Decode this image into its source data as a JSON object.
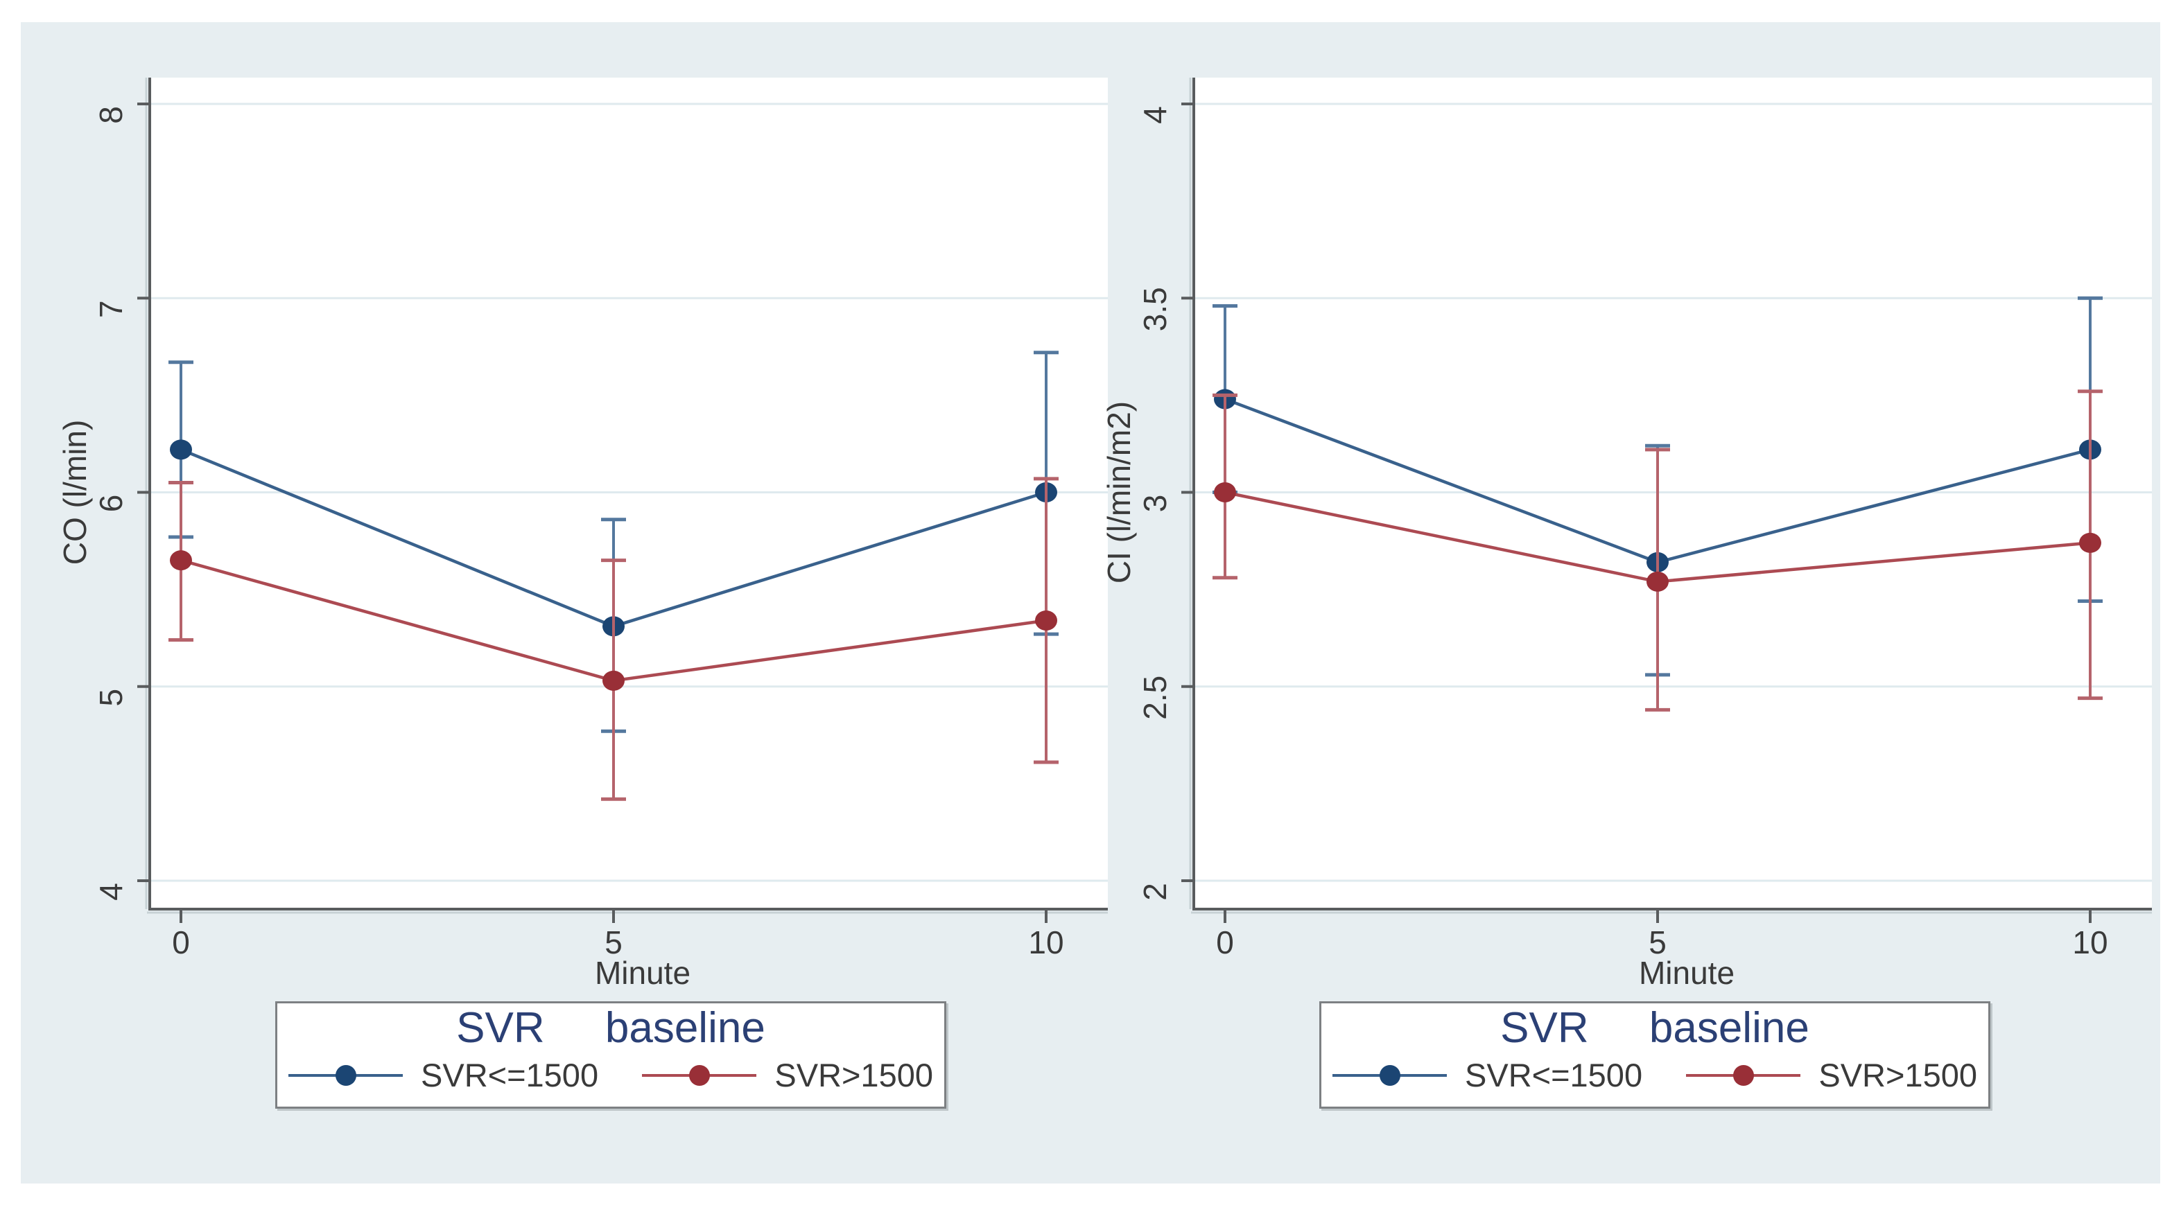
{
  "page": {
    "background": "#ffffff",
    "panel_color": "#e7eef1"
  },
  "colors": {
    "navy_line": "#39618c",
    "navy_marker": "#1b4573",
    "navy_error": "#54789e",
    "maroon_line": "#ac4a52",
    "maroon_marker": "#992f37",
    "maroon_error": "#b5636b",
    "grid": "#dfeaee",
    "axis": "#595c5e",
    "axis_shadow": "#c7d1d5",
    "tick_text": "#3a3a3a",
    "legend_title": "#2b4075",
    "plot_background": "#ffffff"
  },
  "legend": {
    "title": "SVR baseline",
    "entries": [
      {
        "label": "SVR<=1500",
        "line_color": "#39618c",
        "marker_color": "#1b4573"
      },
      {
        "label": "SVR>1500",
        "line_color": "#ac4a52",
        "marker_color": "#992f37"
      }
    ]
  },
  "chart_data": [
    {
      "type": "line",
      "title": "",
      "xlabel": "Minute",
      "ylabel": "CO (l/min)",
      "x": [
        0,
        5,
        10
      ],
      "xticks": [
        0,
        5,
        10
      ],
      "ylim": [
        4,
        8
      ],
      "yticks": [
        4,
        5,
        6,
        7,
        8
      ],
      "grid": true,
      "legend_position": "below",
      "legend_title": "SVR baseline",
      "series": [
        {
          "name": "SVR<=1500",
          "color_key": "navy",
          "values": [
            6.22,
            5.31,
            6.0
          ],
          "ci_low": [
            5.77,
            4.77,
            5.27
          ],
          "ci_high": [
            6.67,
            5.86,
            6.72
          ]
        },
        {
          "name": "SVR>1500",
          "color_key": "maroon",
          "values": [
            5.65,
            5.03,
            5.34
          ],
          "ci_low": [
            5.24,
            4.42,
            4.61
          ],
          "ci_high": [
            6.05,
            5.65,
            6.07
          ]
        }
      ]
    },
    {
      "type": "line",
      "title": "",
      "xlabel": "Minute",
      "ylabel": "CI (l/min/m2)",
      "x": [
        0,
        5,
        10
      ],
      "xticks": [
        0,
        5,
        10
      ],
      "ylim": [
        2,
        4
      ],
      "yticks": [
        2,
        2.5,
        3,
        3.5,
        4
      ],
      "grid": true,
      "legend_position": "below",
      "legend_title": "SVR baseline",
      "series": [
        {
          "name": "SVR<=1500",
          "color_key": "navy",
          "values": [
            3.24,
            2.82,
            3.11
          ],
          "ci_low": [
            3.0,
            2.53,
            2.72
          ],
          "ci_high": [
            3.48,
            3.12,
            3.5
          ]
        },
        {
          "name": "SVR>1500",
          "color_key": "maroon",
          "values": [
            3.0,
            2.77,
            2.87
          ],
          "ci_low": [
            2.78,
            2.44,
            2.47
          ],
          "ci_high": [
            3.25,
            3.11,
            3.26
          ]
        }
      ]
    }
  ]
}
